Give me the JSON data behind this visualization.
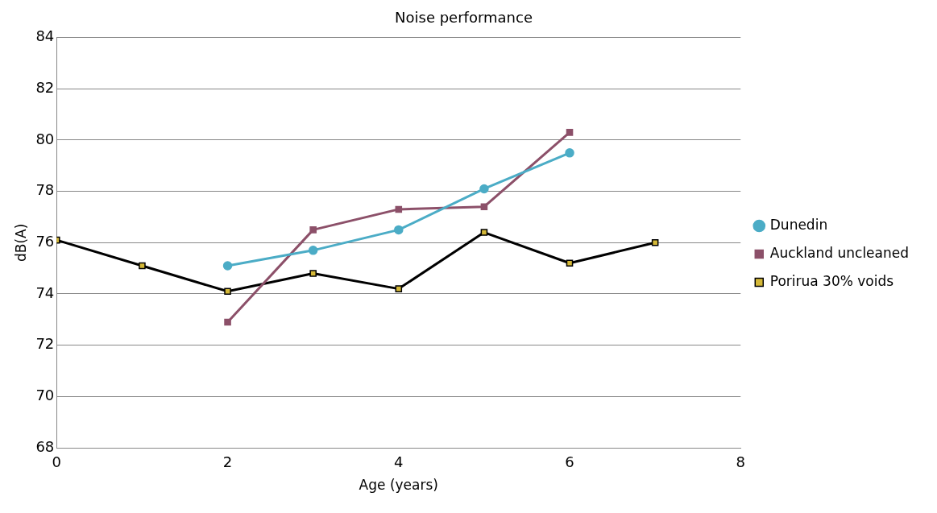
{
  "chart_data": {
    "type": "line",
    "title": "Noise performance",
    "xlabel": "Age (years)",
    "ylabel": "dB(A)",
    "xlim": [
      0,
      8
    ],
    "xticks": [
      0,
      2,
      4,
      6,
      8
    ],
    "ylim": [
      68,
      84
    ],
    "yticks": [
      68,
      70,
      72,
      74,
      76,
      78,
      80,
      82,
      84
    ],
    "grid": "y",
    "legend": "right",
    "series": [
      {
        "name": "Dunedin",
        "color": "#4bacc6",
        "marker": "circle",
        "x": [
          2,
          3,
          4,
          5,
          6
        ],
        "values": [
          75.1,
          75.7,
          76.5,
          78.1,
          79.5
        ]
      },
      {
        "name": "Auckland uncleaned",
        "color": "#8c5069",
        "marker": "square",
        "x": [
          2,
          3,
          4,
          5,
          6
        ],
        "values": [
          72.9,
          76.5,
          77.3,
          77.4,
          80.3
        ]
      },
      {
        "name": "Porirua 30% voids",
        "color": "#000000",
        "colors": [
          "#d4b838",
          "#d4b838",
          "#d4b838",
          "#d4b838",
          "#d4b838",
          "#d4b838",
          "#d4b838",
          "#d4b838"
        ],
        "marker": "square",
        "x": [
          0,
          1,
          2,
          3,
          4,
          5,
          6,
          7
        ],
        "values": [
          76.1,
          75.1,
          74.1,
          74.8,
          74.2,
          76.4,
          75.2,
          76.0
        ]
      }
    ]
  }
}
